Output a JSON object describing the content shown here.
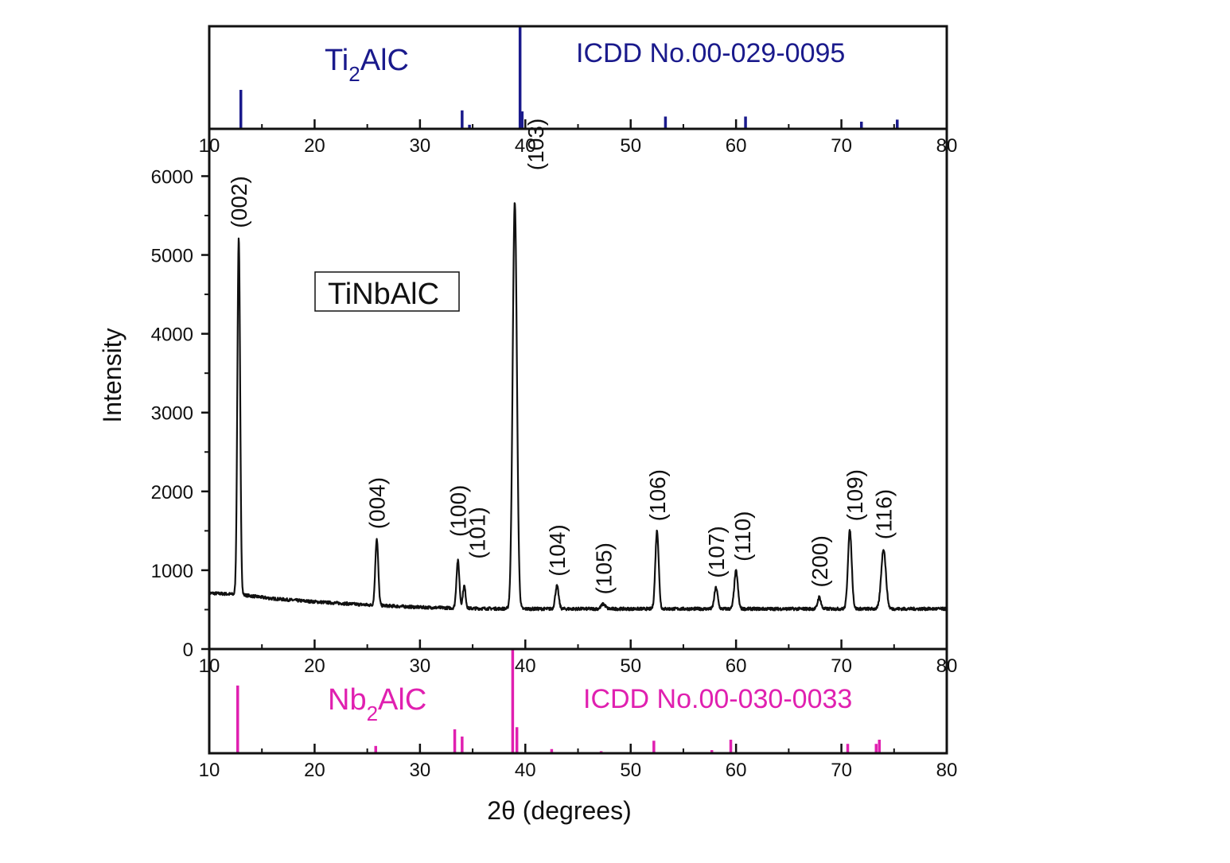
{
  "colors": {
    "axis": "#111111",
    "pattern_line": "#111111",
    "ti2alc": "#1a1a8c",
    "nb2alc": "#e020b0"
  },
  "chart_data": [
    {
      "id": "ti2alc_reference",
      "type": "bar",
      "style": "stick pattern",
      "phase_label": {
        "base": "Ti",
        "sub": "2",
        "rest": "AlC"
      },
      "reference_label": "ICDD No.00-029-0095",
      "xlim": [
        10,
        80
      ],
      "x_ticks": [
        "10",
        "20",
        "30",
        "40",
        "50",
        "60",
        "70",
        "80"
      ],
      "y_ticks_shown": false,
      "sticks": [
        {
          "x": 13.0,
          "y": 38
        },
        {
          "x": 34.0,
          "y": 18
        },
        {
          "x": 34.7,
          "y": 4
        },
        {
          "x": 39.5,
          "y": 100
        },
        {
          "x": 39.7,
          "y": 17
        },
        {
          "x": 43.5,
          "y": 1
        },
        {
          "x": 53.3,
          "y": 12
        },
        {
          "x": 60.9,
          "y": 12
        },
        {
          "x": 71.9,
          "y": 7
        },
        {
          "x": 75.3,
          "y": 9
        }
      ]
    },
    {
      "id": "tinbalc_pattern",
      "type": "line",
      "sample_label": "TiNbAlC",
      "xlabel": "2θ (degrees)",
      "ylabel": "Intensity",
      "xlim": [
        10,
        80
      ],
      "ylim": [
        0,
        6600
      ],
      "x_ticks": [
        "10",
        "20",
        "30",
        "40",
        "50",
        "60",
        "70",
        "80"
      ],
      "y_ticks": [
        "0",
        "1000",
        "2000",
        "3000",
        "4000",
        "5000",
        "6000"
      ],
      "background": [
        [
          10,
          710
        ],
        [
          13,
          690
        ],
        [
          16,
          640
        ],
        [
          20,
          600
        ],
        [
          25,
          560
        ],
        [
          30,
          530
        ],
        [
          35,
          515
        ],
        [
          40,
          510
        ],
        [
          50,
          510
        ],
        [
          60,
          510
        ],
        [
          70,
          510
        ],
        [
          80,
          510
        ]
      ],
      "peaks": [
        {
          "x": 12.8,
          "y": 5220,
          "width": 0.13,
          "label": "(002)"
        },
        {
          "x": 25.9,
          "y": 1400,
          "width": 0.14,
          "label": "(004)"
        },
        {
          "x": 33.6,
          "y": 1120,
          "width": 0.14,
          "label": "(100)"
        },
        {
          "x": 34.2,
          "y": 800,
          "width": 0.13,
          "label": "(101)"
        },
        {
          "x": 39.0,
          "y": 5670,
          "width": 0.2,
          "label": "(103)"
        },
        {
          "x": 43.0,
          "y": 800,
          "width": 0.16,
          "label": "(104)"
        },
        {
          "x": 47.4,
          "y": 570,
          "width": 0.2,
          "label": "(105)"
        },
        {
          "x": 52.5,
          "y": 1500,
          "width": 0.16,
          "label": "(106)"
        },
        {
          "x": 58.1,
          "y": 780,
          "width": 0.16,
          "label": "(107)"
        },
        {
          "x": 60.0,
          "y": 990,
          "width": 0.17,
          "label": "(110)"
        },
        {
          "x": 67.9,
          "y": 660,
          "width": 0.15,
          "label": "(200)"
        },
        {
          "x": 70.8,
          "y": 1500,
          "width": 0.18,
          "label": "(109)"
        },
        {
          "x": 74.0,
          "y": 1270,
          "width": 0.22,
          "label": "(116)"
        }
      ]
    },
    {
      "id": "nb2alc_reference",
      "type": "bar",
      "style": "stick pattern",
      "phase_label": {
        "base": "Nb",
        "sub": "2",
        "rest": "AlC"
      },
      "reference_label": "ICDD No.00-030-0033",
      "xlabel": "2θ (degrees)",
      "xlim": [
        10,
        80
      ],
      "x_ticks": [
        "10",
        "20",
        "30",
        "40",
        "50",
        "60",
        "70",
        "80"
      ],
      "y_ticks_shown": false,
      "sticks": [
        {
          "x": 12.7,
          "y": 65
        },
        {
          "x": 25.8,
          "y": 7
        },
        {
          "x": 33.3,
          "y": 23
        },
        {
          "x": 34.0,
          "y": 16
        },
        {
          "x": 38.8,
          "y": 100
        },
        {
          "x": 39.2,
          "y": 25
        },
        {
          "x": 42.5,
          "y": 4
        },
        {
          "x": 47.2,
          "y": 2
        },
        {
          "x": 52.2,
          "y": 12
        },
        {
          "x": 57.7,
          "y": 3
        },
        {
          "x": 59.5,
          "y": 13
        },
        {
          "x": 70.6,
          "y": 9
        },
        {
          "x": 73.3,
          "y": 9
        },
        {
          "x": 73.6,
          "y": 13
        }
      ]
    }
  ]
}
